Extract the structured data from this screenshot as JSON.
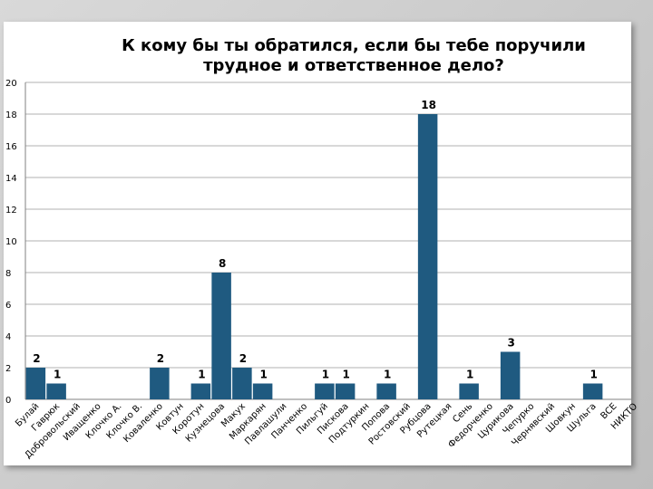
{
  "chart_data": {
    "type": "bar",
    "title": "К кому бы ты обратился, если бы тебе поручили трудное и ответственное дело?",
    "title_lines": [
      "К кому бы ты обратился, если бы тебе поручили",
      "трудное и ответственное дело?"
    ],
    "categories": [
      "Булай",
      "Гаврюк",
      "Добровольский",
      "Иващенко",
      "Клочко А.",
      "Клочко В.",
      "Коваленко",
      "Ковтун",
      "Коротун",
      "Кузнецова",
      "Макух",
      "Маркарян",
      "Павлашули",
      "Панченко",
      "Пильгуй",
      "Пискова",
      "Подтуркин",
      "Попова",
      "Ростовский",
      "Рубцова",
      "Рутецкая",
      "Сень",
      "Федорченко",
      "Цурикова",
      "Чепурко",
      "Чернявский",
      "Шовкун",
      "Шульга",
      "ВСЕ",
      "НИКТО"
    ],
    "values": [
      2,
      1,
      0,
      0,
      0,
      0,
      2,
      0,
      1,
      8,
      2,
      1,
      0,
      0,
      1,
      1,
      0,
      1,
      0,
      18,
      0,
      1,
      0,
      3,
      0,
      0,
      0,
      1,
      0,
      0
    ],
    "data_labels": [
      "2",
      "1",
      "",
      "",
      "",
      "",
      "2",
      "",
      "1",
      "8",
      "2",
      "1",
      "",
      "",
      "1",
      "1",
      "",
      "1",
      "",
      "18",
      "",
      "1",
      "",
      "3",
      "",
      "",
      "",
      "1",
      "",
      ""
    ],
    "ylim": [
      0,
      20
    ],
    "yticks": [
      0,
      2,
      4,
      6,
      8,
      10,
      12,
      14,
      16,
      18,
      20
    ],
    "ytick_labels": [
      "0",
      "2",
      "4",
      "6",
      "8",
      "10",
      "12",
      "14",
      "16",
      "18",
      "20"
    ],
    "xlabel": "",
    "ylabel": "",
    "grid": true,
    "legend": "none",
    "colors": {
      "bar": "#1f5a80",
      "grid": "#b0b0b0",
      "text": "#000000"
    }
  }
}
